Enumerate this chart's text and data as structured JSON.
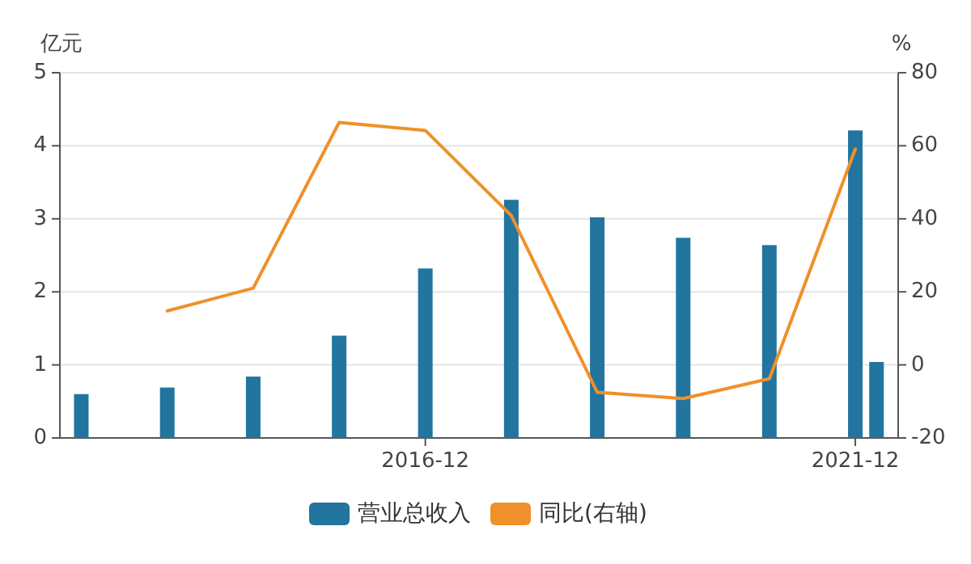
{
  "chart_data": {
    "type": "bar",
    "ylabel": "亿元",
    "y2label": "%",
    "ylim": [
      0,
      5
    ],
    "yticks": [
      0,
      1,
      2,
      3,
      4,
      5
    ],
    "y2lim": [
      -20,
      80
    ],
    "y2ticks": [
      -20,
      0,
      20,
      40,
      60,
      80
    ],
    "xlim": [
      "2012-09",
      "2022-06"
    ],
    "xticks": [
      "2016-12",
      "2021-12"
    ],
    "grid": "y",
    "legend": "bottom",
    "series": [
      {
        "name": "营业总收入",
        "color": "#21759f",
        "x": [
          "2012-12",
          "2013-12",
          "2014-12",
          "2015-12",
          "2016-12",
          "2017-12",
          "2018-12",
          "2019-12",
          "2020-12",
          "2021-12",
          "2022-03"
        ],
        "values": [
          0.6,
          0.69,
          0.84,
          1.4,
          2.32,
          3.26,
          3.02,
          2.74,
          2.64,
          4.21,
          1.04
        ]
      },
      {
        "name": "同比(右轴)",
        "type": "line",
        "axis": "y2",
        "color": "#f0902a",
        "x": [
          "2013-12",
          "2014-12",
          "2015-12",
          "2016-12",
          "2017-12",
          "2018-12",
          "2019-12",
          "2020-12",
          "2021-12"
        ],
        "values": [
          14.8,
          21.0,
          66.4,
          64.2,
          40.9,
          -7.5,
          -9.2,
          -3.8,
          59.1
        ]
      }
    ]
  }
}
